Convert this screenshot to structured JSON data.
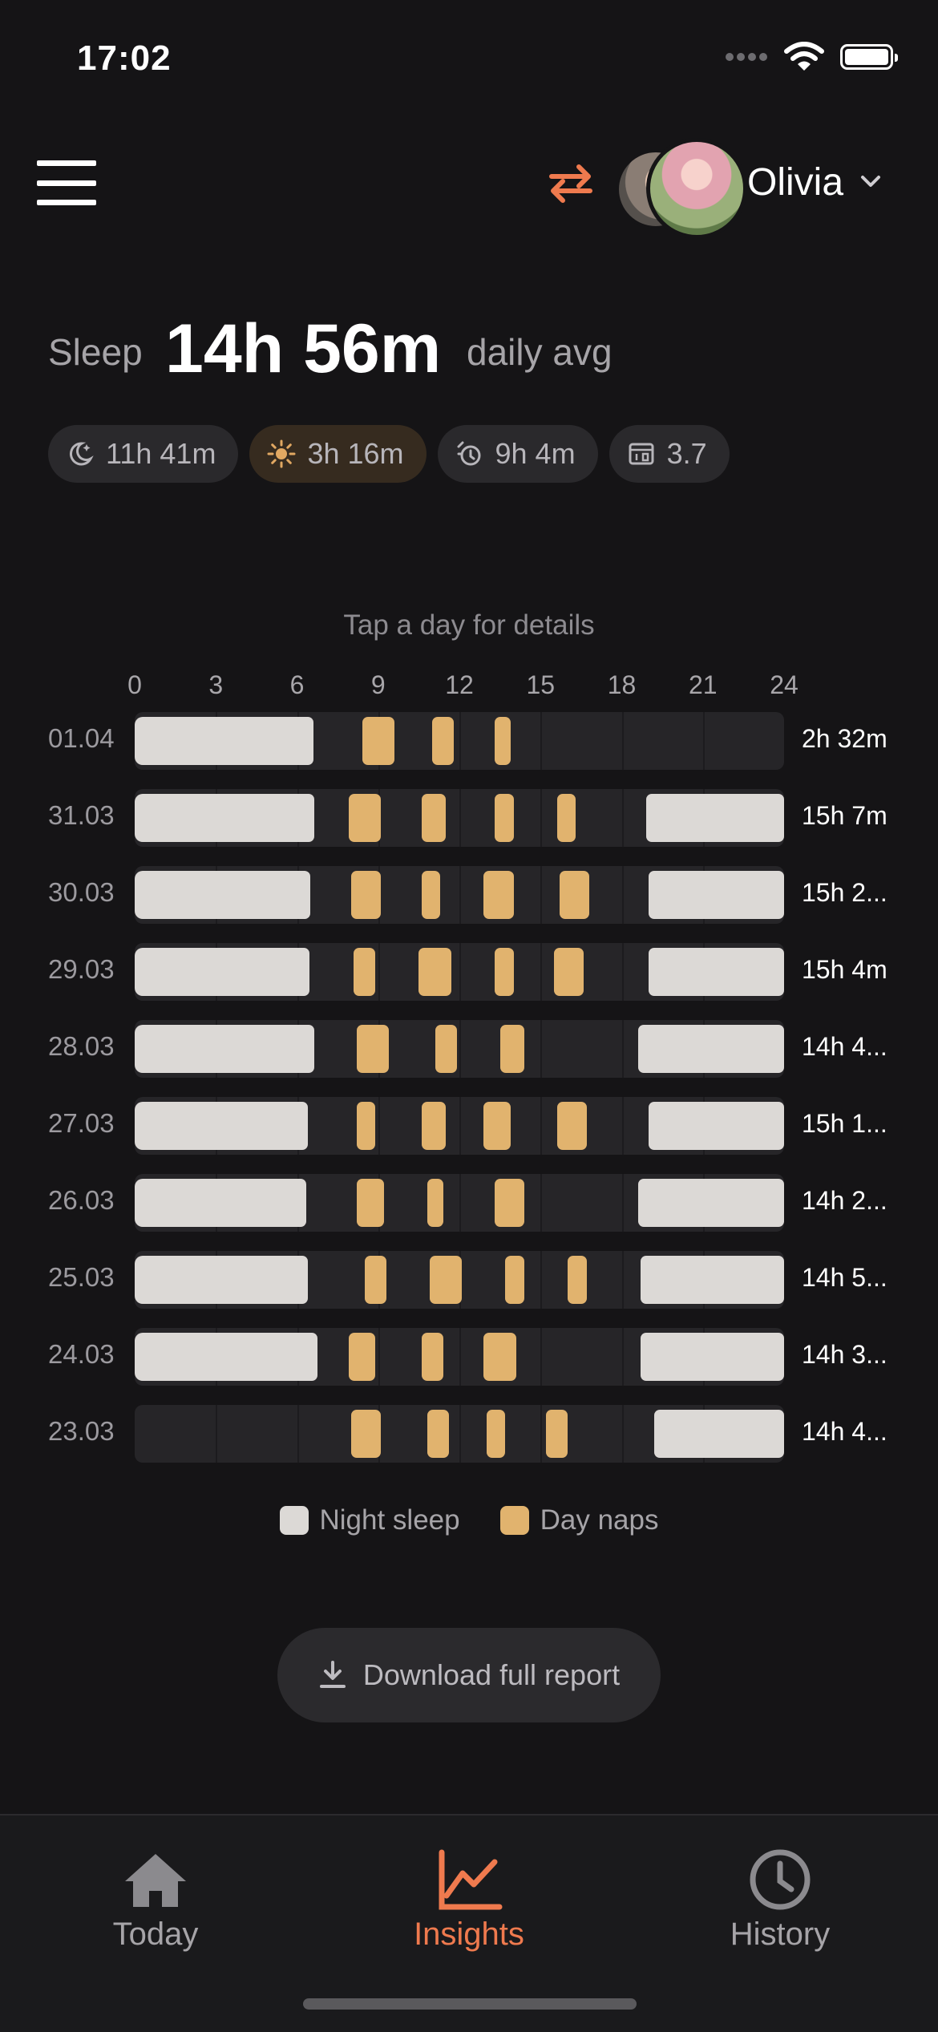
{
  "status_bar": {
    "time": "17:02"
  },
  "header": {
    "baby_name": "Olivia"
  },
  "summary": {
    "label": "Sleep",
    "value": "14h 56m",
    "suffix": "daily avg",
    "pills": [
      {
        "icon": "moon-icon",
        "text": "11h 41m"
      },
      {
        "icon": "sun-icon",
        "text": "3h 16m"
      },
      {
        "icon": "alarm-clock-icon",
        "text": "9h 4m"
      },
      {
        "icon": "calendar-count-icon",
        "text": "3.7"
      }
    ]
  },
  "chart": {
    "hint": "Tap a day for details",
    "ticks": [
      "0",
      "3",
      "6",
      "9",
      "12",
      "15",
      "18",
      "21",
      "24"
    ]
  },
  "chart_data": {
    "type": "table",
    "x_unit": "hour of day",
    "xlim": [
      0,
      24
    ],
    "series_names": [
      "Night sleep",
      "Day naps"
    ],
    "rows": [
      {
        "date": "01.04",
        "total": "2h 32m",
        "night": [
          [
            0,
            6.6
          ]
        ],
        "naps": [
          [
            8.4,
            9.6
          ],
          [
            11.0,
            11.8
          ],
          [
            13.3,
            13.9
          ]
        ]
      },
      {
        "date": "31.03",
        "total": "15h 7m",
        "night": [
          [
            0,
            6.65
          ],
          [
            18.9,
            24
          ]
        ],
        "naps": [
          [
            7.9,
            9.1
          ],
          [
            10.6,
            11.5
          ],
          [
            13.3,
            14.0
          ],
          [
            15.6,
            16.3
          ]
        ]
      },
      {
        "date": "30.03",
        "total": "15h 2...",
        "night": [
          [
            0,
            6.5
          ],
          [
            19.0,
            24
          ]
        ],
        "naps": [
          [
            8.0,
            9.1
          ],
          [
            10.6,
            11.3
          ],
          [
            12.9,
            14.0
          ],
          [
            15.7,
            16.8
          ]
        ]
      },
      {
        "date": "29.03",
        "total": "15h 4m",
        "night": [
          [
            0,
            6.45
          ],
          [
            19.0,
            24
          ]
        ],
        "naps": [
          [
            8.1,
            8.9
          ],
          [
            10.5,
            11.7
          ],
          [
            13.3,
            14.0
          ],
          [
            15.5,
            16.6
          ]
        ]
      },
      {
        "date": "28.03",
        "total": "14h 4...",
        "night": [
          [
            0,
            6.65
          ],
          [
            18.6,
            24
          ]
        ],
        "naps": [
          [
            8.2,
            9.4
          ],
          [
            11.1,
            11.9
          ],
          [
            13.5,
            14.4
          ]
        ]
      },
      {
        "date": "27.03",
        "total": "15h 1...",
        "night": [
          [
            0,
            6.4
          ],
          [
            19.0,
            24
          ]
        ],
        "naps": [
          [
            8.2,
            8.9
          ],
          [
            10.6,
            11.5
          ],
          [
            12.9,
            13.9
          ],
          [
            15.6,
            16.7
          ]
        ]
      },
      {
        "date": "26.03",
        "total": "14h 2...",
        "night": [
          [
            0,
            6.35
          ],
          [
            18.6,
            24
          ]
        ],
        "naps": [
          [
            8.2,
            9.2
          ],
          [
            10.8,
            11.4
          ],
          [
            13.3,
            14.4
          ]
        ]
      },
      {
        "date": "25.03",
        "total": "14h 5...",
        "night": [
          [
            0,
            6.4
          ],
          [
            18.7,
            24
          ]
        ],
        "naps": [
          [
            8.5,
            9.3
          ],
          [
            10.9,
            12.1
          ],
          [
            13.7,
            14.4
          ],
          [
            16.0,
            16.7
          ]
        ]
      },
      {
        "date": "24.03",
        "total": "14h 3...",
        "night": [
          [
            0,
            6.75
          ],
          [
            18.7,
            24
          ]
        ],
        "naps": [
          [
            7.9,
            8.9
          ],
          [
            10.6,
            11.4
          ],
          [
            12.9,
            14.1
          ]
        ]
      },
      {
        "date": "23.03",
        "total": "14h 4...",
        "night": [
          [
            19.2,
            24
          ]
        ],
        "naps": [
          [
            8.0,
            9.1
          ],
          [
            10.8,
            11.6
          ],
          [
            13.0,
            13.7
          ],
          [
            15.2,
            16.0
          ]
        ]
      }
    ]
  },
  "legend": {
    "night": "Night sleep",
    "naps": "Day naps"
  },
  "download": {
    "label": "Download full report"
  },
  "tabs": [
    {
      "label": "Today",
      "icon": "house-icon",
      "active": false
    },
    {
      "label": "Insights",
      "icon": "chart-line-icon",
      "active": true
    },
    {
      "label": "History",
      "icon": "clock-icon",
      "active": false
    }
  ],
  "colors": {
    "night": "#dcd9d6",
    "nap": "#e1b36e",
    "accent": "#ef7a4e",
    "background": "#151416"
  }
}
